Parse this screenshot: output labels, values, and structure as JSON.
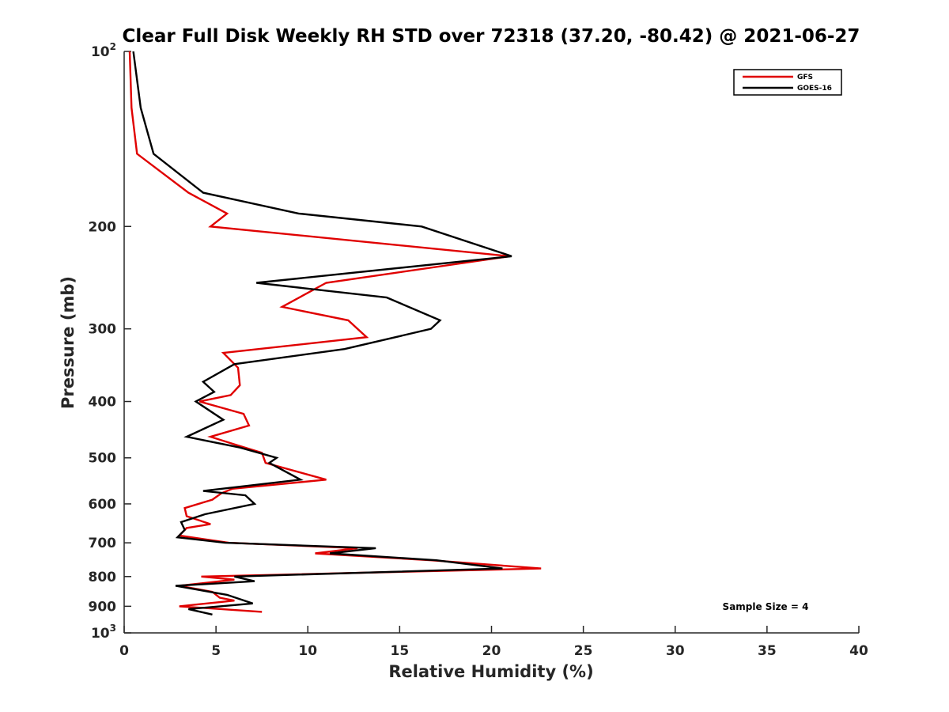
{
  "chart_data": {
    "type": "line",
    "title": "Clear Full Disk Weekly RH STD over 72318 (37.20, -80.42) @ 2021-06-27",
    "xlabel": "Relative Humidity (%)",
    "ylabel": "Pressure (mb)",
    "xlim": [
      0,
      40
    ],
    "ylim": [
      100,
      1000
    ],
    "y_scale": "log",
    "y_reversed": true,
    "grid": false,
    "legend_position": "top-right",
    "x_ticks": [
      "0",
      "5",
      "10",
      "15",
      "20",
      "25",
      "30",
      "35",
      "40"
    ],
    "y_ticks": [
      {
        "value": 100,
        "base": "10",
        "exp": "2"
      },
      {
        "value": 200,
        "label": "200"
      },
      {
        "value": 300,
        "label": "300"
      },
      {
        "value": 400,
        "label": "400"
      },
      {
        "value": 500,
        "label": "500"
      },
      {
        "value": 600,
        "label": "600"
      },
      {
        "value": 700,
        "label": "700"
      },
      {
        "value": 800,
        "label": "800"
      },
      {
        "value": 900,
        "label": "900"
      },
      {
        "value": 1000,
        "base": "10",
        "exp": "3"
      }
    ],
    "annotation": "Sample Size = 4",
    "series": [
      {
        "name": "GFS",
        "color": "#e00000",
        "points": [
          [
            0.3,
            100
          ],
          [
            0.4,
            125
          ],
          [
            0.7,
            150
          ],
          [
            3.5,
            175
          ],
          [
            5.6,
            190
          ],
          [
            4.7,
            200
          ],
          [
            21.0,
            225
          ],
          [
            11.0,
            250
          ],
          [
            8.6,
            275
          ],
          [
            12.2,
            290
          ],
          [
            13.2,
            310
          ],
          [
            5.4,
            330
          ],
          [
            6.2,
            350
          ],
          [
            6.3,
            375
          ],
          [
            5.8,
            390
          ],
          [
            4.1,
            400
          ],
          [
            6.5,
            420
          ],
          [
            6.8,
            440
          ],
          [
            4.7,
            460
          ],
          [
            6.1,
            475
          ],
          [
            7.5,
            490
          ],
          [
            7.7,
            510
          ],
          [
            11.0,
            545
          ],
          [
            5.9,
            565
          ],
          [
            5.3,
            575
          ],
          [
            4.8,
            590
          ],
          [
            3.3,
            610
          ],
          [
            3.4,
            630
          ],
          [
            4.7,
            650
          ],
          [
            3.4,
            660
          ],
          [
            3.0,
            680
          ],
          [
            5.7,
            700
          ],
          [
            12.7,
            715
          ],
          [
            10.4,
            730
          ],
          [
            16.7,
            750
          ],
          [
            22.7,
            775
          ],
          [
            4.2,
            800
          ],
          [
            6.0,
            810
          ],
          [
            3.0,
            830
          ],
          [
            4.8,
            850
          ],
          [
            5.2,
            870
          ],
          [
            6.0,
            880
          ],
          [
            3.0,
            900
          ],
          [
            7.5,
            920
          ]
        ]
      },
      {
        "name": "GOES-16",
        "color": "#000000",
        "points": [
          [
            0.5,
            100
          ],
          [
            0.9,
            125
          ],
          [
            1.6,
            150
          ],
          [
            4.3,
            175
          ],
          [
            9.5,
            190
          ],
          [
            16.2,
            200
          ],
          [
            21.1,
            225
          ],
          [
            7.2,
            250
          ],
          [
            14.3,
            265
          ],
          [
            17.2,
            290
          ],
          [
            16.7,
            300
          ],
          [
            12.0,
            325
          ],
          [
            6.0,
            345
          ],
          [
            4.3,
            370
          ],
          [
            4.9,
            385
          ],
          [
            3.9,
            400
          ],
          [
            5.4,
            430
          ],
          [
            3.4,
            460
          ],
          [
            6.3,
            480
          ],
          [
            8.3,
            500
          ],
          [
            7.9,
            510
          ],
          [
            9.6,
            545
          ],
          [
            4.3,
            570
          ],
          [
            6.6,
            580
          ],
          [
            7.1,
            600
          ],
          [
            4.4,
            625
          ],
          [
            3.1,
            645
          ],
          [
            3.3,
            665
          ],
          [
            2.9,
            685
          ],
          [
            5.5,
            700
          ],
          [
            13.7,
            715
          ],
          [
            11.2,
            730
          ],
          [
            17.0,
            750
          ],
          [
            20.6,
            775
          ],
          [
            6.0,
            800
          ],
          [
            7.1,
            815
          ],
          [
            2.8,
            830
          ],
          [
            5.6,
            860
          ],
          [
            7.0,
            890
          ],
          [
            3.5,
            910
          ],
          [
            4.8,
            930
          ]
        ]
      }
    ]
  }
}
